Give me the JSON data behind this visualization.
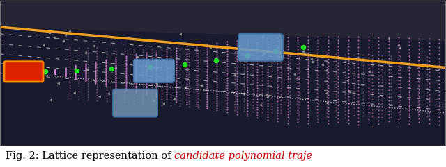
{
  "fig_width": 6.4,
  "fig_height": 2.41,
  "dpi": 100,
  "caption_text_black": "Fig. 2: Lattice representation of ",
  "caption_text_red": "candidate polynomial traje",
  "caption_color_black": "#000000",
  "caption_color_red": "#cc0000",
  "caption_fontsize": 10.5,
  "img_bg": "#1c1c2e",
  "road_color": "#1a1a2e",
  "upper_color": "#252535",
  "curb_color": "#5a5a6a",
  "orange_line": "#f0a020",
  "pink_traj": "#cc88cc",
  "green_path": "#22dd22",
  "ego_face": "#dd2200",
  "ego_edge": "#ff8800",
  "obs_face": "#6699cc",
  "obs_edge": "#4477aa"
}
